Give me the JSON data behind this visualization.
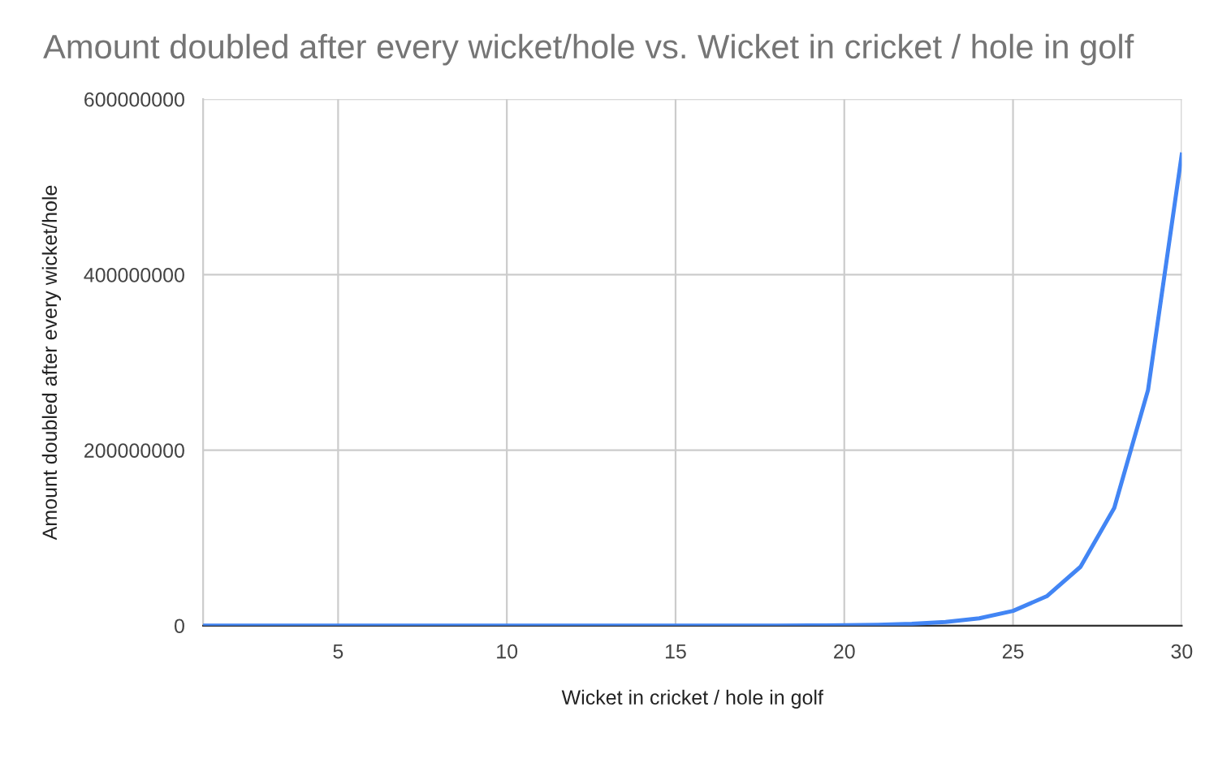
{
  "chart_data": {
    "type": "line",
    "title": "Amount doubled after every wicket/hole vs. Wicket in cricket / hole in golf",
    "xlabel": "Wicket in cricket / hole in golf",
    "ylabel": "Amount doubled after every wicket/hole",
    "x": [
      1,
      2,
      3,
      4,
      5,
      6,
      7,
      8,
      9,
      10,
      11,
      12,
      13,
      14,
      15,
      16,
      17,
      18,
      19,
      20,
      21,
      22,
      23,
      24,
      25,
      26,
      27,
      28,
      29,
      30
    ],
    "series": [
      {
        "color": "#4285f4",
        "values": [
          1,
          2,
          4,
          8,
          16,
          32,
          64,
          128,
          256,
          512,
          1024,
          2048,
          4096,
          8192,
          16384,
          32768,
          65536,
          131072,
          262144,
          524288,
          1048576,
          2097152,
          4194304,
          8388608,
          16777216,
          33554432,
          67108864,
          134217728,
          268435456,
          536870912
        ]
      }
    ],
    "xlim": [
      1,
      30
    ],
    "xticks": [
      5,
      10,
      15,
      20,
      25,
      30
    ],
    "ylim": [
      0,
      600000000
    ],
    "yticks": [
      0,
      200000000,
      400000000,
      600000000
    ],
    "grid": true,
    "marker": "none",
    "line_style": "solid"
  }
}
